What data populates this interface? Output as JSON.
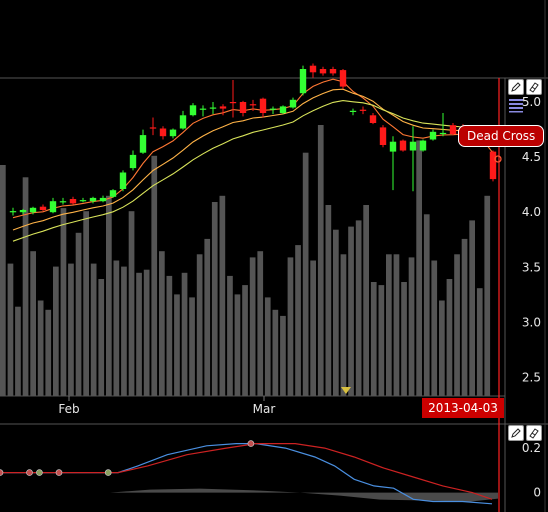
{
  "chart_data": [
    {
      "type": "candlestick",
      "panel": "price",
      "x_tick_labels": [
        "Feb",
        "Mar"
      ],
      "y_ticks": [
        2.5,
        3.0,
        3.5,
        4.0,
        4.5,
        5.0
      ],
      "ylim": [
        2.35,
        5.2
      ],
      "annotation": "Dead Cross",
      "cursor_date": "2013-04-03",
      "candles": [
        {
          "o": 4.0,
          "h": 4.04,
          "l": 3.97,
          "c": 4.01
        },
        {
          "o": 4.0,
          "h": 4.03,
          "l": 3.98,
          "c": 4.02
        },
        {
          "o": 4.0,
          "h": 4.05,
          "l": 3.98,
          "c": 4.04
        },
        {
          "o": 4.05,
          "h": 4.07,
          "l": 4.01,
          "c": 4.02
        },
        {
          "o": 4.0,
          "h": 4.13,
          "l": 3.99,
          "c": 4.1
        },
        {
          "o": 4.1,
          "h": 4.13,
          "l": 4.07,
          "c": 4.1
        },
        {
          "o": 4.12,
          "h": 4.14,
          "l": 4.07,
          "c": 4.08
        },
        {
          "o": 4.11,
          "h": 4.13,
          "l": 4.09,
          "c": 4.11
        },
        {
          "o": 4.1,
          "h": 4.14,
          "l": 4.08,
          "c": 4.13
        },
        {
          "o": 4.1,
          "h": 4.15,
          "l": 4.09,
          "c": 4.13
        },
        {
          "o": 4.14,
          "h": 4.21,
          "l": 4.13,
          "c": 4.2
        },
        {
          "o": 4.21,
          "h": 4.38,
          "l": 4.19,
          "c": 4.36
        },
        {
          "o": 4.4,
          "h": 4.56,
          "l": 4.38,
          "c": 4.52
        },
        {
          "o": 4.54,
          "h": 4.75,
          "l": 4.53,
          "c": 4.7
        },
        {
          "o": 4.77,
          "h": 4.86,
          "l": 4.7,
          "c": 4.76
        },
        {
          "o": 4.76,
          "h": 4.78,
          "l": 4.66,
          "c": 4.69
        },
        {
          "o": 4.69,
          "h": 4.76,
          "l": 4.67,
          "c": 4.75
        },
        {
          "o": 4.76,
          "h": 4.92,
          "l": 4.75,
          "c": 4.88
        },
        {
          "o": 4.88,
          "h": 4.99,
          "l": 4.87,
          "c": 4.97
        },
        {
          "o": 4.94,
          "h": 4.97,
          "l": 4.87,
          "c": 4.94
        },
        {
          "o": 4.95,
          "h": 5.0,
          "l": 4.89,
          "c": 4.95
        },
        {
          "o": 4.96,
          "h": 4.98,
          "l": 4.88,
          "c": 4.94
        },
        {
          "o": 5.0,
          "h": 5.2,
          "l": 4.86,
          "c": 4.99
        },
        {
          "o": 5.0,
          "h": 5.01,
          "l": 4.87,
          "c": 4.9
        },
        {
          "o": 4.98,
          "h": 5.02,
          "l": 4.92,
          "c": 4.97
        },
        {
          "o": 5.03,
          "h": 5.04,
          "l": 4.86,
          "c": 4.9
        },
        {
          "o": 4.94,
          "h": 4.96,
          "l": 4.89,
          "c": 4.94
        },
        {
          "o": 4.9,
          "h": 4.97,
          "l": 4.89,
          "c": 4.96
        },
        {
          "o": 4.95,
          "h": 5.04,
          "l": 4.94,
          "c": 5.02
        },
        {
          "o": 5.08,
          "h": 5.33,
          "l": 5.06,
          "c": 5.3
        },
        {
          "o": 5.33,
          "h": 5.35,
          "l": 5.22,
          "c": 5.27
        },
        {
          "o": 5.3,
          "h": 5.32,
          "l": 5.24,
          "c": 5.26
        },
        {
          "o": 5.3,
          "h": 5.32,
          "l": 5.24,
          "c": 5.26
        },
        {
          "o": 5.29,
          "h": 5.3,
          "l": 5.12,
          "c": 5.14
        },
        {
          "o": 4.92,
          "h": 4.94,
          "l": 4.88,
          "c": 4.92
        },
        {
          "o": 4.93,
          "h": 4.96,
          "l": 4.89,
          "c": 4.92
        },
        {
          "o": 4.88,
          "h": 4.9,
          "l": 4.8,
          "c": 4.81
        },
        {
          "o": 4.77,
          "h": 4.79,
          "l": 4.59,
          "c": 4.61
        },
        {
          "o": 4.55,
          "h": 4.69,
          "l": 4.2,
          "c": 4.64
        },
        {
          "o": 4.65,
          "h": 4.66,
          "l": 4.55,
          "c": 4.56
        },
        {
          "o": 4.56,
          "h": 4.78,
          "l": 4.19,
          "c": 4.64
        },
        {
          "o": 4.56,
          "h": 4.66,
          "l": 4.55,
          "c": 4.65
        },
        {
          "o": 4.66,
          "h": 4.75,
          "l": 4.65,
          "c": 4.73
        },
        {
          "o": 4.72,
          "h": 4.9,
          "l": 4.69,
          "c": 4.72
        },
        {
          "o": 4.79,
          "h": 4.81,
          "l": 4.7,
          "c": 4.71
        },
        {
          "o": 4.78,
          "h": 4.8,
          "l": 4.7,
          "c": 4.72
        },
        {
          "o": 4.74,
          "h": 4.75,
          "l": 4.6,
          "c": 4.61
        },
        {
          "o": 4.69,
          "h": 4.71,
          "l": 4.6,
          "c": 4.61
        },
        {
          "o": 4.55,
          "h": 4.56,
          "l": 4.28,
          "c": 4.3
        }
      ],
      "volume_relative": [
        0.75,
        0.43,
        0.29,
        0.71,
        0.47,
        0.31,
        0.28,
        0.42,
        0.61,
        0.43,
        0.53,
        0.6,
        0.43,
        0.38,
        0.65,
        0.44,
        0.42,
        0.6,
        0.4,
        0.41,
        0.78,
        0.47,
        0.39,
        0.33,
        0.4,
        0.32,
        0.46,
        0.51,
        0.63,
        0.65,
        0.39,
        0.33,
        0.36,
        0.45,
        0.47,
        0.32,
        0.28,
        0.26,
        0.45,
        0.49,
        0.79,
        0.44,
        0.88,
        0.62,
        0.54,
        0.46,
        0.55,
        0.57,
        0.62,
        0.37,
        0.36,
        0.46,
        0.46,
        0.37,
        0.45,
        0.83,
        0.59,
        0.44,
        0.31,
        0.38,
        0.46,
        0.51,
        0.57,
        0.35,
        0.65
      ],
      "series": [
        {
          "name": "",
          "color": "#ff7733",
          "role": "ma-fast"
        },
        {
          "name": "",
          "color": "#ffb347",
          "role": "ma-mid"
        },
        {
          "name": "",
          "color": "#d8e35a",
          "role": "ma-slow"
        }
      ]
    },
    {
      "type": "line",
      "panel": "indicator",
      "y_ticks": [
        0,
        0.2
      ],
      "ylim": [
        -0.06,
        0.29
      ],
      "series": [
        {
          "name": "",
          "color": "#4a8fe0",
          "points": [
            [
              0,
              0.09
            ],
            [
              120,
              0.09
            ],
            [
              140,
              0.12
            ],
            [
              170,
              0.17
            ],
            [
              210,
              0.21
            ],
            [
              240,
              0.22
            ],
            [
              260,
              0.22
            ],
            [
              290,
              0.2
            ],
            [
              320,
              0.16
            ],
            [
              340,
              0.12
            ],
            [
              360,
              0.06
            ],
            [
              380,
              0.03
            ],
            [
              400,
              0.02
            ],
            [
              420,
              -0.03
            ],
            [
              440,
              -0.04
            ],
            [
              470,
              -0.04
            ],
            [
              500,
              -0.05
            ]
          ]
        },
        {
          "name": "",
          "color": "#cc2222",
          "points": [
            [
              0,
              0.09
            ],
            [
              120,
              0.09
            ],
            [
              150,
              0.12
            ],
            [
              190,
              0.17
            ],
            [
              230,
              0.2
            ],
            [
              260,
              0.22
            ],
            [
              300,
              0.22
            ],
            [
              330,
              0.2
            ],
            [
              360,
              0.16
            ],
            [
              390,
              0.11
            ],
            [
              420,
              0.07
            ],
            [
              450,
              0.03
            ],
            [
              480,
              0.0
            ],
            [
              500,
              -0.03
            ]
          ]
        }
      ],
      "markers": [
        [
          0,
          0.09
        ],
        [
          30,
          0.09
        ],
        [
          40,
          0.09
        ],
        [
          60,
          0.09
        ],
        [
          110,
          0.09
        ],
        [
          255,
          0.22
        ]
      ],
      "histogram_color": "#4a4a4a"
    }
  ],
  "toolbar": {
    "icons": [
      "pencil-icon",
      "eraser-icon",
      "menu-icon"
    ]
  },
  "colors": {
    "background": "#000000",
    "up": "#33ff33",
    "down": "#ff1a1a",
    "volume": "#555555",
    "cursor": "#ff2222",
    "grid": "#555555"
  }
}
